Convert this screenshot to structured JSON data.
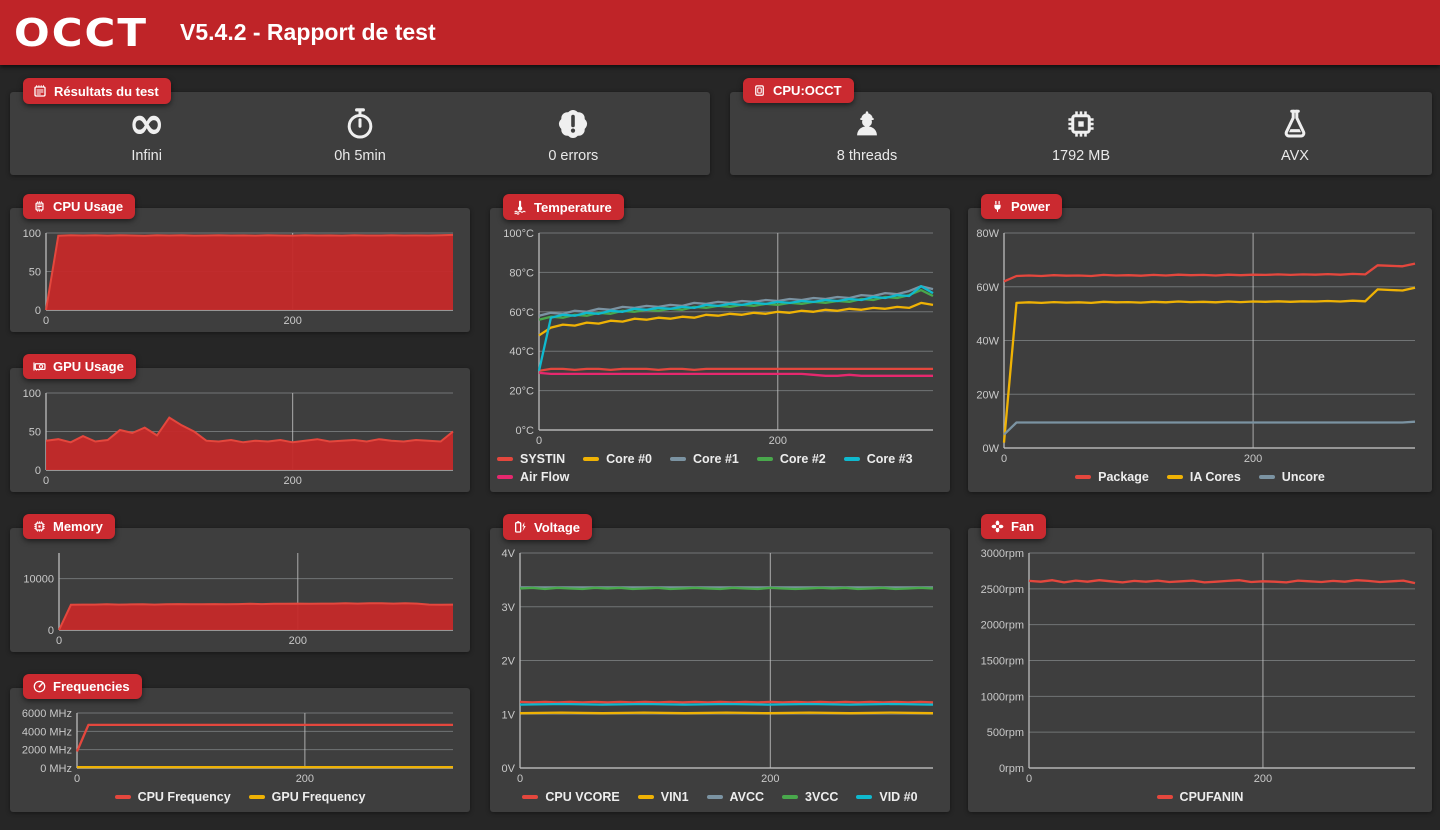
{
  "header": {
    "logo": "OCCT",
    "title": "V5.4.2 - Rapport de test"
  },
  "colors": {
    "header_red": "#BF2428",
    "badge_red": "#CB2A30",
    "panel_bg": "#3E3E3E",
    "page_bg": "#262626",
    "series_red": "#E4473D",
    "series_fill_red": "#C42A2A",
    "series_yellow": "#EFB204",
    "series_slate": "#7B93A2",
    "series_green": "#49A84C",
    "series_cyan": "#0FB9CE",
    "series_pink": "#E6286E",
    "grid": "#9AA0A3",
    "axis": "#C0C0C0",
    "tick_text": "#C9C9C9"
  },
  "summary_results": {
    "label": "Résultats du test",
    "icon": "notepad-icon",
    "items": [
      {
        "icon": "infinity-icon",
        "value": "Infini"
      },
      {
        "icon": "stopwatch-icon",
        "value": "0h 5min"
      },
      {
        "icon": "error-seal-icon",
        "value": "0 errors"
      }
    ]
  },
  "summary_cpu": {
    "label": "CPU:OCCT",
    "icon": "app-window-icon",
    "items": [
      {
        "icon": "worker-icon",
        "value": "8 threads"
      },
      {
        "icon": "chip-icon",
        "value": "1792 MB"
      },
      {
        "icon": "flask-icon",
        "value": "AVX"
      }
    ]
  },
  "chart_data": [
    {
      "id": "cpu_usage",
      "panel_label": "CPU Usage",
      "icon": "cpu-icon",
      "type": "area",
      "ylim": [
        0,
        100
      ],
      "xmax": 330,
      "legend": false,
      "grid": true,
      "yticks": [
        {
          "v": 0,
          "label": "0"
        },
        {
          "v": 50,
          "label": "50"
        },
        {
          "v": 100,
          "label": "100"
        }
      ],
      "xticks": [
        {
          "v": 0,
          "label": "0"
        },
        {
          "v": 200,
          "label": "200"
        }
      ],
      "series": [
        {
          "name": "CPU",
          "color": "#E4473D",
          "fill": "#C42A2A",
          "values": [
            0,
            96.5,
            97,
            96.8,
            97,
            96.6,
            97,
            96.8,
            96.5,
            97,
            96.8,
            97,
            96.6,
            96.8,
            97,
            96.7,
            96.9,
            96.6,
            97,
            96.8,
            96.6,
            97,
            96.8,
            96.9,
            96.6,
            97,
            96.8,
            96.7,
            97,
            96.8,
            96.9,
            96.7,
            97,
            97.5
          ]
        }
      ]
    },
    {
      "id": "gpu_usage",
      "panel_label": "GPU Usage",
      "icon": "gpu-icon",
      "type": "area",
      "ylim": [
        0,
        100
      ],
      "xmax": 330,
      "legend": false,
      "grid": true,
      "yticks": [
        {
          "v": 0,
          "label": "0"
        },
        {
          "v": 50,
          "label": "50"
        },
        {
          "v": 100,
          "label": "100"
        }
      ],
      "xticks": [
        {
          "v": 0,
          "label": "0"
        },
        {
          "v": 200,
          "label": "200"
        }
      ],
      "series": [
        {
          "name": "GPU",
          "color": "#E4473D",
          "fill": "#C42A2A",
          "values": [
            38,
            40,
            36,
            44,
            37,
            39,
            52,
            48,
            55,
            45,
            68,
            58,
            50,
            38,
            37,
            39,
            36,
            38,
            37,
            39,
            36,
            38,
            40,
            37,
            38,
            39,
            37,
            40,
            38,
            37,
            39,
            38,
            37,
            50
          ]
        }
      ]
    },
    {
      "id": "memory",
      "panel_label": "Memory",
      "icon": "memory-icon",
      "type": "area",
      "ylim": [
        0,
        15000
      ],
      "xmax": 330,
      "legend": false,
      "grid": true,
      "yticks": [
        {
          "v": 0,
          "label": "0"
        },
        {
          "v": 10000,
          "label": "10000"
        }
      ],
      "xticks": [
        {
          "v": 0,
          "label": "0"
        },
        {
          "v": 200,
          "label": "200"
        }
      ],
      "series": [
        {
          "name": "Memory",
          "color": "#E4473D",
          "fill": "#C42A2A",
          "values": [
            0,
            4900,
            4950,
            4950,
            5000,
            4950,
            4980,
            5000,
            4950,
            5000,
            5050,
            5000,
            5000,
            5050,
            5000,
            5050,
            5100,
            5050,
            5100,
            5100,
            5150,
            5100,
            5150,
            5150,
            5200,
            5150,
            5200,
            5200,
            5150,
            5200,
            5150,
            4950,
            4900,
            4950
          ]
        }
      ]
    },
    {
      "id": "frequencies",
      "panel_label": "Frequencies",
      "icon": "gauge-icon",
      "type": "line",
      "ylim": [
        0,
        6000
      ],
      "xmax": 330,
      "legend": true,
      "grid": true,
      "yticks": [
        {
          "v": 0,
          "label": "0 MHz"
        },
        {
          "v": 2000,
          "label": "2000 MHz"
        },
        {
          "v": 4000,
          "label": "4000 MHz"
        },
        {
          "v": 6000,
          "label": "6000 MHz"
        }
      ],
      "xticks": [
        {
          "v": 0,
          "label": "0"
        },
        {
          "v": 200,
          "label": "200"
        }
      ],
      "series": [
        {
          "name": "CPU Frequency",
          "color": "#E4473D",
          "values": [
            1800,
            4700,
            4700,
            4700,
            4700,
            4700,
            4700,
            4700,
            4700,
            4700,
            4700,
            4700,
            4700,
            4700,
            4700,
            4700,
            4700,
            4700,
            4700,
            4700,
            4700,
            4700,
            4700,
            4700,
            4700,
            4700,
            4700,
            4700,
            4700,
            4700,
            4700,
            4700,
            4700,
            4700
          ]
        },
        {
          "name": "GPU Frequency",
          "color": "#EFB204",
          "values": [
            100,
            100
          ]
        }
      ]
    },
    {
      "id": "temperature",
      "panel_label": "Temperature",
      "icon": "thermometer-icon",
      "type": "line",
      "ylim": [
        0,
        100
      ],
      "xmax": 330,
      "legend": true,
      "grid": true,
      "yticks": [
        {
          "v": 0,
          "label": "0°C"
        },
        {
          "v": 20,
          "label": "20°C"
        },
        {
          "v": 40,
          "label": "40°C"
        },
        {
          "v": 60,
          "label": "60°C"
        },
        {
          "v": 80,
          "label": "80°C"
        },
        {
          "v": 100,
          "label": "100°C"
        }
      ],
      "xticks": [
        {
          "v": 0,
          "label": "0"
        },
        {
          "v": 200,
          "label": "200"
        }
      ],
      "series": [
        {
          "name": "SYSTIN",
          "color": "#E4473D",
          "values": [
            30,
            31,
            31,
            30.5,
            31,
            31,
            30.5,
            31,
            31,
            31,
            30.5,
            31,
            31,
            30.5,
            31,
            31,
            31,
            31,
            31,
            31,
            31,
            31,
            31,
            31,
            31,
            31,
            31,
            31,
            31,
            31,
            31,
            31,
            31,
            31
          ]
        },
        {
          "name": "Core #0",
          "color": "#EFB204",
          "values": [
            48,
            52,
            53.5,
            53,
            54.5,
            54,
            55.5,
            55,
            56.5,
            56,
            57,
            56.5,
            57.5,
            57,
            58.5,
            58,
            59,
            58.5,
            59.5,
            59,
            60,
            59.5,
            60.5,
            60,
            61,
            60.5,
            61.5,
            61,
            62,
            61.5,
            62.5,
            62,
            64.5,
            63.5
          ]
        },
        {
          "name": "Core #1",
          "color": "#7B93A2",
          "values": [
            58,
            59.5,
            59,
            60.5,
            60,
            61.5,
            61,
            62.5,
            62,
            63,
            62.5,
            63.5,
            63,
            64.5,
            64,
            65,
            64.5,
            65.5,
            65,
            66,
            65.5,
            66.5,
            66,
            67,
            66.5,
            67.5,
            67,
            68.5,
            68,
            69.5,
            69,
            70.5,
            73,
            71.5
          ]
        },
        {
          "name": "Core #2",
          "color": "#49A84C",
          "values": [
            56,
            57.5,
            57,
            58.5,
            58,
            59.5,
            59,
            60.5,
            60,
            61,
            60.5,
            61.5,
            61,
            62.5,
            62,
            63,
            62.5,
            63.5,
            63,
            64,
            63.5,
            64.5,
            64,
            65,
            64.5,
            65.5,
            65,
            66.5,
            66,
            67.5,
            67,
            68.5,
            71,
            68
          ]
        },
        {
          "name": "Core #3",
          "color": "#0FB9CE",
          "values": [
            30,
            57,
            58.5,
            58,
            59.5,
            59,
            60.5,
            60,
            61.5,
            61,
            62,
            61.5,
            62.5,
            62,
            63.5,
            63,
            64,
            63.5,
            64.5,
            64,
            65,
            64.5,
            65.5,
            65,
            66,
            65.5,
            66.5,
            66,
            67.5,
            67,
            68.5,
            68,
            73,
            69.5
          ]
        },
        {
          "name": "Air Flow",
          "color": "#E6286E",
          "values": [
            29,
            28.5,
            28.5,
            28.5,
            28.5,
            28.5,
            28.5,
            28.5,
            28.5,
            28.5,
            28.5,
            28.5,
            28.5,
            28.5,
            28.5,
            28.5,
            28.5,
            28.5,
            28.5,
            28.5,
            28.5,
            28.5,
            28.5,
            28,
            27.5,
            27.5,
            28,
            27.5,
            27.5,
            27.5,
            27.5,
            27.5,
            27.5,
            27.5
          ]
        }
      ]
    },
    {
      "id": "voltage",
      "panel_label": "Voltage",
      "icon": "battery-bolt-icon",
      "type": "line",
      "ylim": [
        0,
        4
      ],
      "xmax": 330,
      "legend": true,
      "grid": true,
      "yticks": [
        {
          "v": 0,
          "label": "0V"
        },
        {
          "v": 1,
          "label": "1V"
        },
        {
          "v": 2,
          "label": "2V"
        },
        {
          "v": 3,
          "label": "3V"
        },
        {
          "v": 4,
          "label": "4V"
        }
      ],
      "xticks": [
        {
          "v": 0,
          "label": "0"
        },
        {
          "v": 200,
          "label": "200"
        }
      ],
      "series": [
        {
          "name": "CPU VCORE",
          "color": "#E4473D",
          "values": [
            1.23,
            1.22,
            1.23,
            1.22,
            1.23,
            1.22,
            1.23,
            1.22,
            1.23,
            1.22,
            1.23,
            1.22,
            1.23,
            1.22,
            1.23,
            1.22,
            1.23,
            1.22,
            1.23,
            1.22,
            1.23,
            1.22,
            1.23,
            1.22,
            1.23,
            1.22,
            1.23,
            1.22,
            1.23,
            1.22,
            1.23,
            1.22,
            1.23,
            1.22
          ]
        },
        {
          "name": "VIN1",
          "color": "#EFB204",
          "values": [
            1.02,
            1.03,
            1.02,
            1.03,
            1.02,
            1.03,
            1.02,
            1.03,
            1.02,
            1.03,
            1.02
          ]
        },
        {
          "name": "AVCC",
          "color": "#7B93A2",
          "values": [
            3.36,
            3.36
          ]
        },
        {
          "name": "3VCC",
          "color": "#49A84C",
          "values": [
            3.34,
            3.35,
            3.33,
            3.35,
            3.34,
            3.33,
            3.35,
            3.34,
            3.35,
            3.33,
            3.34,
            3.35,
            3.33,
            3.34,
            3.35,
            3.34,
            3.33,
            3.35,
            3.34,
            3.33,
            3.35,
            3.34,
            3.33,
            3.34,
            3.35,
            3.34,
            3.35,
            3.33,
            3.34,
            3.35,
            3.33,
            3.34,
            3.35,
            3.34
          ]
        },
        {
          "name": "VID #0",
          "color": "#0FB9CE",
          "values": [
            1.18,
            1.19,
            1.18,
            1.19,
            1.18,
            1.19,
            1.18,
            1.19,
            1.18,
            1.19,
            1.18
          ]
        }
      ]
    },
    {
      "id": "power",
      "panel_label": "Power",
      "icon": "plug-icon",
      "type": "line",
      "ylim": [
        0,
        80
      ],
      "xmax": 330,
      "legend": true,
      "grid": true,
      "yticks": [
        {
          "v": 0,
          "label": "0W"
        },
        {
          "v": 20,
          "label": "20W"
        },
        {
          "v": 40,
          "label": "40W"
        },
        {
          "v": 60,
          "label": "60W"
        },
        {
          "v": 80,
          "label": "80W"
        }
      ],
      "xticks": [
        {
          "v": 0,
          "label": "0"
        },
        {
          "v": 200,
          "label": "200"
        }
      ],
      "series": [
        {
          "name": "Package",
          "color": "#E4473D",
          "values": [
            62,
            64,
            64.2,
            64,
            64.3,
            64.1,
            64.2,
            64,
            64.4,
            64.2,
            64.3,
            64.1,
            64.4,
            64.2,
            64.5,
            64.3,
            64.4,
            64.2,
            64.5,
            64.3,
            64.5,
            64.4,
            64.6,
            64.4,
            64.6,
            64.5,
            64.7,
            64.5,
            64.8,
            64.6,
            68,
            67.8,
            67.6,
            68.6
          ]
        },
        {
          "name": "IA Cores",
          "color": "#EFB204",
          "values": [
            2,
            54,
            54.2,
            54,
            54.3,
            54.1,
            54.2,
            54,
            54.4,
            54.2,
            54.3,
            54.1,
            54.4,
            54.2,
            54.5,
            54.3,
            54.4,
            54.2,
            54.5,
            54.3,
            54.5,
            54.4,
            54.6,
            54.4,
            54.6,
            54.5,
            54.7,
            54.5,
            54.8,
            54.6,
            59,
            58.8,
            58.6,
            59.6
          ]
        },
        {
          "name": "Uncore",
          "color": "#7B93A2",
          "values": [
            5,
            9.5,
            9.5,
            9.5,
            9.5,
            9.5,
            9.5,
            9.5,
            9.5,
            9.5,
            9.5,
            9.5,
            9.5,
            9.5,
            9.5,
            9.5,
            9.5,
            9.5,
            9.5,
            9.5,
            9.5,
            9.5,
            9.5,
            9.5,
            9.5,
            9.5,
            9.5,
            9.5,
            9.5,
            9.5,
            9.5,
            9.5,
            9.5,
            9.8
          ]
        }
      ]
    },
    {
      "id": "fan",
      "panel_label": "Fan",
      "icon": "fan-icon",
      "type": "line",
      "ylim": [
        0,
        3000
      ],
      "xmax": 330,
      "legend": true,
      "grid": true,
      "yticks": [
        {
          "v": 0,
          "label": "0rpm"
        },
        {
          "v": 500,
          "label": "500rpm"
        },
        {
          "v": 1000,
          "label": "1000rpm"
        },
        {
          "v": 1500,
          "label": "1500rpm"
        },
        {
          "v": 2000,
          "label": "2000rpm"
        },
        {
          "v": 2500,
          "label": "2500rpm"
        },
        {
          "v": 3000,
          "label": "3000rpm"
        }
      ],
      "xticks": [
        {
          "v": 0,
          "label": "0"
        },
        {
          "v": 200,
          "label": "200"
        }
      ],
      "series": [
        {
          "name": "CPUFANIN",
          "color": "#E4473D",
          "values": [
            2610,
            2600,
            2620,
            2590,
            2615,
            2600,
            2620,
            2605,
            2590,
            2610,
            2600,
            2615,
            2595,
            2605,
            2615,
            2590,
            2600,
            2610,
            2620,
            2595,
            2605,
            2600,
            2590,
            2615,
            2605,
            2595,
            2610,
            2600,
            2620,
            2610,
            2595,
            2605,
            2615,
            2580
          ]
        }
      ]
    }
  ]
}
